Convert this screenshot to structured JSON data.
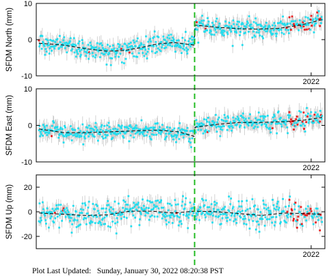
{
  "footer": {
    "label": "Plot Last Updated:",
    "timestamp": "Sunday, January 30, 2022 08:20:38 PST"
  },
  "colors": {
    "points": "#22ddee",
    "recent_points": "#e82020",
    "error_bars": "#c8c8c8",
    "trend": "#000000",
    "event_line": "#22bb22"
  },
  "chart_data": [
    {
      "type": "scatter",
      "ylabel": "SFDM North (mm)",
      "ylim": [
        -10,
        10
      ],
      "yticks": [
        -10,
        0,
        10
      ],
      "xlim": [
        2017.0,
        2022.25
      ],
      "xticks": [
        {
          "value": 2022.0,
          "label": "2022"
        }
      ],
      "event_date": 2019.88,
      "trend": [
        {
          "x": 2017.05,
          "y": -1.0
        },
        {
          "x": 2017.5,
          "y": -1.5
        },
        {
          "x": 2017.9,
          "y": -2.5
        },
        {
          "x": 2018.3,
          "y": -3.2
        },
        {
          "x": 2018.6,
          "y": -3.0
        },
        {
          "x": 2018.9,
          "y": -2.2
        },
        {
          "x": 2019.2,
          "y": -1.2
        },
        {
          "x": 2019.5,
          "y": -0.8
        },
        {
          "x": 2019.87,
          "y": -1.5
        },
        {
          "x": 2019.89,
          "y": 4.0
        },
        {
          "x": 2020.3,
          "y": 3.4
        },
        {
          "x": 2020.7,
          "y": 3.0
        },
        {
          "x": 2021.0,
          "y": 2.9
        },
        {
          "x": 2021.4,
          "y": 3.1
        },
        {
          "x": 2021.8,
          "y": 4.0
        },
        {
          "x": 2022.2,
          "y": 5.5
        }
      ],
      "noise": 1.4,
      "error": 2.0
    },
    {
      "type": "scatter",
      "ylabel": "SFDM East (mm)",
      "ylim": [
        -10,
        10
      ],
      "yticks": [
        -10,
        0,
        10
      ],
      "xlim": [
        2017.0,
        2022.25
      ],
      "xticks": [
        {
          "value": 2022.0,
          "label": "2022"
        }
      ],
      "event_date": 2019.88,
      "trend": [
        {
          "x": 2017.05,
          "y": -1.0
        },
        {
          "x": 2017.5,
          "y": -2.0
        },
        {
          "x": 2017.9,
          "y": -2.0
        },
        {
          "x": 2018.3,
          "y": -1.8
        },
        {
          "x": 2018.8,
          "y": -1.5
        },
        {
          "x": 2019.2,
          "y": -1.3
        },
        {
          "x": 2019.6,
          "y": -1.8
        },
        {
          "x": 2019.87,
          "y": -3.0
        },
        {
          "x": 2019.89,
          "y": -0.5
        },
        {
          "x": 2020.3,
          "y": 0.3
        },
        {
          "x": 2020.7,
          "y": 0.8
        },
        {
          "x": 2021.1,
          "y": 0.8
        },
        {
          "x": 2021.5,
          "y": 1.0
        },
        {
          "x": 2021.9,
          "y": 1.5
        },
        {
          "x": 2022.2,
          "y": 2.2
        }
      ],
      "noise": 1.2,
      "error": 2.0
    },
    {
      "type": "scatter",
      "ylabel": "SFDM Up (mm)",
      "ylim": [
        -30,
        30
      ],
      "yticks": [
        -20,
        0,
        20
      ],
      "xlim": [
        2017.0,
        2022.25
      ],
      "xticks": [
        {
          "value": 2022.0,
          "label": "2022"
        }
      ],
      "event_date": 2019.88,
      "trend": [
        {
          "x": 2017.05,
          "y": -1.0
        },
        {
          "x": 2017.5,
          "y": -2.0
        },
        {
          "x": 2017.9,
          "y": -3.0
        },
        {
          "x": 2018.3,
          "y": -2.5
        },
        {
          "x": 2018.7,
          "y": 0.5
        },
        {
          "x": 2019.1,
          "y": 0.5
        },
        {
          "x": 2019.5,
          "y": -1.0
        },
        {
          "x": 2019.88,
          "y": 0.5
        },
        {
          "x": 2020.3,
          "y": 0.0
        },
        {
          "x": 2020.7,
          "y": -1.5
        },
        {
          "x": 2021.1,
          "y": -3.0
        },
        {
          "x": 2021.5,
          "y": -1.0
        },
        {
          "x": 2021.9,
          "y": -1.5
        },
        {
          "x": 2022.2,
          "y": -2.0
        }
      ],
      "noise": 5.5,
      "error": 5.5
    }
  ]
}
